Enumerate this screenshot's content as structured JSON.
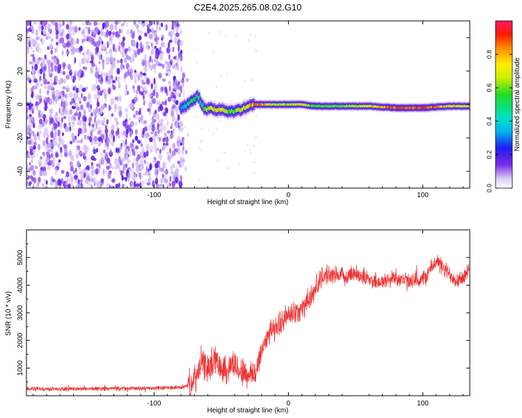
{
  "title": "C2E4.2025.265.08.02.G10",
  "chart_data": [
    {
      "type": "heatmap",
      "title": "C2E4.2025.265.08.02.G10",
      "xlabel": "Height of straight line (km)",
      "ylabel": "Frequency (Hz)",
      "xlim": [
        -195,
        135
      ],
      "ylim": [
        -50,
        50
      ],
      "xticks": [
        -100,
        0,
        100
      ],
      "xtick_labels": [
        "-100",
        "0",
        "100"
      ],
      "yticks": [
        -40,
        -20,
        0,
        20,
        40
      ],
      "ytick_labels": [
        "-40",
        "-20",
        "0",
        "20",
        "40"
      ],
      "noise_region": {
        "x_range": [
          -195,
          -78
        ],
        "freq_range": [
          -50,
          50
        ]
      },
      "signal_track": {
        "x": [
          -80,
          -75,
          -70,
          -67,
          -65,
          -62,
          -58,
          -55,
          -50,
          -45,
          -40,
          -35,
          -30,
          -25,
          -20,
          -10,
          0,
          10,
          20,
          40,
          60,
          80,
          100,
          120,
          135
        ],
        "freq": [
          -2,
          0,
          3,
          5,
          1,
          -3,
          -2,
          -3,
          -3,
          -4,
          -4,
          -3,
          -1,
          0,
          0,
          0,
          0,
          0,
          -1,
          -1,
          -1,
          -2,
          -2,
          -1,
          -1
        ],
        "amplitude": [
          0.3,
          0.5,
          0.6,
          0.5,
          0.45,
          0.6,
          0.7,
          0.75,
          0.8,
          0.6,
          0.6,
          0.7,
          0.8,
          0.9,
          0.9,
          0.7,
          0.7,
          0.75,
          0.6,
          0.65,
          0.75,
          0.95,
          0.95,
          0.8,
          0.7
        ]
      },
      "colorbar": {
        "label": "Normalized spectral amplitude",
        "range": [
          0.0,
          1.0
        ],
        "ticks": [
          0.0,
          0.2,
          0.4,
          0.6,
          0.8
        ],
        "tick_labels": [
          "0.0",
          "0.2",
          "0.4",
          "0.6",
          "0.8"
        ]
      }
    },
    {
      "type": "line",
      "xlabel": "Height of straight line (km)",
      "ylabel": "SNR (10 * v/v)",
      "xlim": [
        -195,
        135
      ],
      "ylim": [
        0,
        6000
      ],
      "xticks": [
        -100,
        0,
        100
      ],
      "xtick_labels": [
        "-100",
        "0",
        "100"
      ],
      "yticks": [
        1000,
        2000,
        3000,
        4000,
        5000
      ],
      "ytick_labels": [
        "1000",
        "2000",
        "3000",
        "4000",
        "5000"
      ],
      "color": "#ee3333",
      "series": [
        {
          "name": "SNR",
          "x": [
            -195,
            -170,
            -150,
            -120,
            -100,
            -80,
            -72,
            -68,
            -65,
            -60,
            -55,
            -50,
            -45,
            -42,
            -38,
            -35,
            -30,
            -25,
            -20,
            -15,
            -10,
            -5,
            0,
            5,
            10,
            15,
            20,
            25,
            30,
            40,
            50,
            60,
            70,
            80,
            90,
            100,
            105,
            110,
            115,
            120,
            125,
            130,
            135
          ],
          "values": [
            250,
            240,
            255,
            260,
            270,
            300,
            400,
            700,
            1200,
            1000,
            1300,
            1100,
            900,
            1200,
            1000,
            900,
            700,
            800,
            1600,
            2300,
            2400,
            2700,
            2900,
            3000,
            3200,
            3400,
            3900,
            4300,
            4400,
            4300,
            4450,
            4200,
            4100,
            4300,
            4100,
            4200,
            4500,
            4900,
            4600,
            4400,
            4200,
            4300,
            4500
          ]
        }
      ]
    }
  ]
}
